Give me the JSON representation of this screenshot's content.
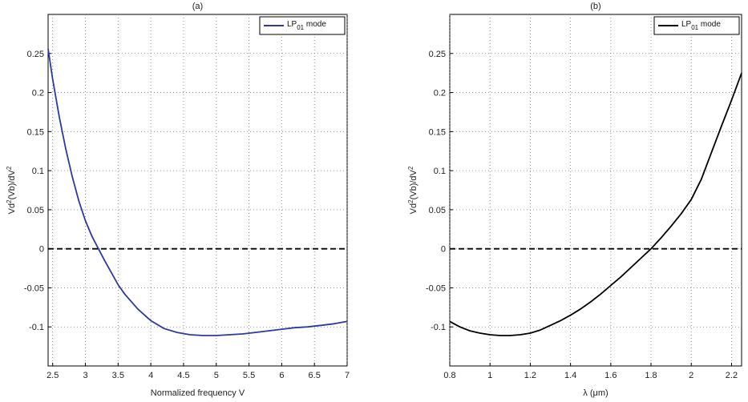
{
  "chart_data": [
    {
      "type": "line",
      "title": "(a)",
      "xlabel": "Normalized frequency V",
      "ylabel": "Vd²(Vb)/dV²",
      "xlim": [
        2.43,
        7.0
      ],
      "ylim": [
        -0.15,
        0.3
      ],
      "xticks": [
        2.5,
        3,
        3.5,
        4,
        4.5,
        5,
        5.5,
        6,
        6.5,
        7
      ],
      "xtick_labels": [
        "2.5",
        "3",
        "3.5",
        "4",
        "4.5",
        "5",
        "5.5",
        "6",
        "6.5",
        "7"
      ],
      "yticks": [
        -0.1,
        -0.05,
        0,
        0.05,
        0.1,
        0.15,
        0.2,
        0.25
      ],
      "ytick_labels": [
        "-0.1",
        "-0.05",
        "0",
        "0.05",
        "0.1",
        "0.15",
        "0.2",
        "0.25"
      ],
      "grid": true,
      "legend_position": "top-right",
      "series": [
        {
          "name": "LP01 mode",
          "legend_main": "LP",
          "legend_sub": "01",
          "legend_rest": " mode",
          "color": "#2b3aa3",
          "style": "solid",
          "x": [
            2.43,
            2.5,
            2.6,
            2.7,
            2.8,
            2.9,
            3.0,
            3.1,
            3.2,
            3.3,
            3.4,
            3.5,
            3.6,
            3.8,
            4.0,
            4.2,
            4.4,
            4.6,
            4.8,
            5.0,
            5.2,
            5.4,
            5.6,
            5.8,
            6.0,
            6.2,
            6.4,
            6.6,
            6.8,
            7.0
          ],
          "y": [
            0.256,
            0.217,
            0.169,
            0.128,
            0.092,
            0.061,
            0.036,
            0.016,
            0.0,
            -0.016,
            -0.031,
            -0.046,
            -0.058,
            -0.077,
            -0.092,
            -0.102,
            -0.107,
            -0.11,
            -0.111,
            -0.111,
            -0.11,
            -0.109,
            -0.107,
            -0.105,
            -0.103,
            -0.101,
            -0.1,
            -0.098,
            -0.096,
            -0.093
          ]
        },
        {
          "color": "#000000",
          "style": "dashed",
          "x": [
            2.43,
            7.0
          ],
          "y": [
            0,
            0
          ]
        }
      ]
    },
    {
      "type": "line",
      "title": "(b)",
      "xlabel": "λ (μm)",
      "ylabel": "Vd²(Vb)/dV²",
      "xlim": [
        0.8,
        2.25
      ],
      "ylim": [
        -0.15,
        0.3
      ],
      "xticks": [
        0.8,
        1.0,
        1.2,
        1.4,
        1.6,
        1.8,
        2.0,
        2.2
      ],
      "xtick_labels": [
        "0.8",
        "1",
        "1.2",
        "1.4",
        "1.6",
        "1.8",
        "2",
        "2.2"
      ],
      "yticks": [
        -0.1,
        -0.05,
        0,
        0.05,
        0.1,
        0.15,
        0.2,
        0.25
      ],
      "ytick_labels": [
        "-0.1",
        "-0.05",
        "0",
        "0.05",
        "0.1",
        "0.15",
        "0.2",
        "0.25"
      ],
      "grid": true,
      "legend_position": "top-right",
      "series": [
        {
          "name": "LP01 mode",
          "legend_main": "LP",
          "legend_sub": "01",
          "legend_rest": " mode",
          "color": "#000000",
          "style": "solid",
          "x": [
            0.8,
            0.85,
            0.9,
            0.95,
            1.0,
            1.05,
            1.1,
            1.15,
            1.2,
            1.25,
            1.3,
            1.35,
            1.4,
            1.45,
            1.5,
            1.55,
            1.6,
            1.65,
            1.7,
            1.75,
            1.8,
            1.85,
            1.9,
            1.95,
            2.0,
            2.05,
            2.1,
            2.15,
            2.2,
            2.25
          ],
          "y": [
            -0.093,
            -0.1,
            -0.105,
            -0.108,
            -0.11,
            -0.111,
            -0.111,
            -0.11,
            -0.108,
            -0.104,
            -0.098,
            -0.092,
            -0.085,
            -0.077,
            -0.068,
            -0.058,
            -0.047,
            -0.036,
            -0.024,
            -0.012,
            0.0,
            0.014,
            0.029,
            0.045,
            0.063,
            0.089,
            0.123,
            0.157,
            0.19,
            0.225
          ]
        },
        {
          "color": "#000000",
          "style": "dashed",
          "x": [
            0.8,
            2.25
          ],
          "y": [
            0,
            0
          ]
        }
      ]
    }
  ]
}
